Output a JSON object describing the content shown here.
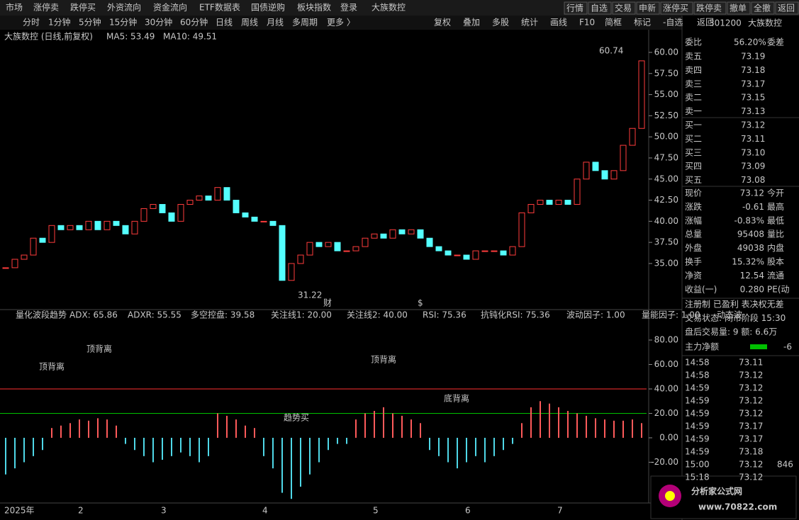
{
  "menu": [
    "市场",
    "涨停卖",
    "跌停买",
    "外资流向",
    "资金流向",
    "ETF数据表",
    "国债逆购",
    "板块指数"
  ],
  "login": "登录",
  "stock_tab": "大族数控",
  "right_buttons": [
    "行情",
    "自选",
    "交易",
    "申新",
    "涨停买",
    "跌停卖",
    "撤单",
    "全撤",
    "返回"
  ],
  "periods": [
    "分时",
    "1分钟",
    "5分钟",
    "15分钟",
    "30分钟",
    "60分钟",
    "日线",
    "周线",
    "月线",
    "多周期",
    "更多 〉"
  ],
  "tools": [
    "复权",
    "叠加",
    "多股",
    "统计",
    "画线",
    "F10",
    "简框",
    "标记",
    "-自选",
    "返回"
  ],
  "chart_data": [
    {
      "type": "candlestick",
      "title": "大族数控 (日线,前复权)",
      "legend": [
        "MA5: 53.49",
        "MA10: 49.51"
      ],
      "annotations": [
        "60.74",
        "31.22",
        "财",
        "$"
      ],
      "categories": [
        "2025年",
        null,
        null,
        null,
        null,
        null,
        null,
        null,
        "2",
        null,
        null,
        null,
        null,
        null,
        null,
        null,
        null,
        "3",
        null,
        null,
        null,
        null,
        null,
        null,
        null,
        null,
        null,
        null,
        "4",
        null,
        null,
        null,
        null,
        null,
        null,
        null,
        null,
        null,
        null,
        null,
        "5",
        null,
        null,
        null,
        null,
        null,
        null,
        null,
        null,
        null,
        "6",
        null,
        null,
        null,
        null,
        null,
        null,
        null,
        null,
        null,
        "7",
        null,
        null,
        null,
        null,
        null,
        null,
        null,
        null,
        null
      ],
      "values": [
        34.5,
        35.5,
        36,
        38,
        37.5,
        39.5,
        39,
        39.5,
        39,
        40,
        39,
        40,
        39.5,
        38.5,
        40,
        41.5,
        42,
        41,
        40,
        42,
        42.5,
        43,
        42.5,
        44,
        42.5,
        41,
        40.5,
        40,
        40,
        39.5,
        33,
        35,
        36,
        37.5,
        37,
        37.5,
        36.5,
        36.5,
        37,
        38,
        38.5,
        38,
        39,
        38.5,
        39,
        38,
        37,
        36.5,
        36,
        36,
        35.5,
        36.5,
        36.5,
        36.5,
        36,
        37,
        41,
        42,
        42.5,
        42,
        42.5,
        42,
        45,
        47,
        46,
        45,
        46,
        49,
        51,
        59
      ],
      "up_color": "#ff3c3c",
      "down_color": "#54ffff",
      "ylim": [
        30.13,
        62.43
      ],
      "yticks": [
        {
          "value": 60,
          "label": "60.00"
        },
        {
          "value": 57.5,
          "label": "57.50"
        },
        {
          "value": 55,
          "label": "55.00"
        },
        {
          "value": 52.5,
          "label": "52.50"
        },
        {
          "value": 50,
          "label": "50.00"
        },
        {
          "value": 47.5,
          "label": "47.50"
        },
        {
          "value": 45,
          "label": "45.00"
        },
        {
          "value": 42.5,
          "label": "42.50"
        },
        {
          "value": 40,
          "label": "40.00"
        },
        {
          "value": 37.5,
          "label": "37.50"
        },
        {
          "value": 35,
          "label": "35.00"
        }
      ]
    },
    {
      "type": "bar",
      "title": "量化波段趋势",
      "legend": [
        "ADX: 65.86",
        "ADXR: 55.55",
        "多空控盘: 39.58",
        "关注线1: 20.00",
        "关注线2: 40.00",
        "RSI: 75.36",
        "抗钝化RSI: 75.36",
        "波动因子: 1.00",
        "量能因子: 1.00",
        "动态波"
      ],
      "annotations": [
        "顶背离",
        "顶背离",
        "顶背离",
        "底背离",
        "趋势买"
      ],
      "reference_lines": [
        20,
        40
      ],
      "reference_colors": [
        "#00c000",
        "#ff3030"
      ],
      "values": [
        -30,
        -25,
        -20,
        -15,
        -10,
        8,
        10,
        12,
        15,
        14,
        16,
        15,
        10,
        -5,
        -10,
        -15,
        -20,
        -18,
        -15,
        -12,
        -15,
        -20,
        -15,
        20,
        18,
        15,
        10,
        8,
        -15,
        -25,
        -45,
        -50,
        -40,
        -30,
        -20,
        -10,
        -5,
        -5,
        15,
        20,
        22,
        25,
        20,
        18,
        15,
        12,
        -10,
        -15,
        -20,
        -25,
        -20,
        -15,
        -20,
        -15,
        -10,
        -5,
        12,
        25,
        30,
        28,
        25,
        22,
        20,
        18,
        16,
        15,
        14,
        14,
        15,
        12
      ],
      "up_color": "#ff5a5a",
      "down_color": "#4fd8e8",
      "ylim": [
        -52.2,
        100.3
      ],
      "yticks": [
        {
          "value": 80,
          "label": "80.00"
        },
        {
          "value": 60,
          "label": "60.00"
        },
        {
          "value": 40,
          "label": "40.00"
        },
        {
          "value": 20,
          "label": "20.00"
        },
        {
          "value": 0,
          "label": "0.00"
        },
        {
          "value": -20,
          "label": "-20.00"
        }
      ]
    }
  ],
  "quote": {
    "code": "301200",
    "name": "大族数控",
    "ratio": [
      "委比",
      "56.20%",
      "委差"
    ],
    "sell": [
      [
        "卖五",
        "73.19"
      ],
      [
        "卖四",
        "73.18"
      ],
      [
        "卖三",
        "73.17"
      ],
      [
        "卖二",
        "73.15"
      ],
      [
        "卖一",
        "73.13"
      ]
    ],
    "buy": [
      [
        "买一",
        "73.12"
      ],
      [
        "买二",
        "73.11"
      ],
      [
        "买三",
        "73.10"
      ],
      [
        "买四",
        "73.09"
      ],
      [
        "买五",
        "73.08"
      ]
    ],
    "stats": [
      [
        "现价",
        "73.12",
        "今开"
      ],
      [
        "涨跌",
        "-0.61",
        "最高"
      ],
      [
        "涨幅",
        "-0.83%",
        "最低"
      ],
      [
        "总量",
        "95408",
        "量比"
      ],
      [
        "外盘",
        "49038",
        "内盘"
      ],
      [
        "换手",
        "15.32%",
        "股本"
      ],
      [
        "净资",
        "12.54",
        "流通"
      ],
      [
        "收益(一)",
        "0.280",
        "PE(动"
      ]
    ],
    "notes": [
      "注册制 已盈利 表决权无差",
      "交易状态: 闭市阶段 15:30",
      "盘后交易量: 9 额: 6.6万"
    ],
    "flow": [
      "主力净额",
      "-6"
    ],
    "trades": [
      [
        "14:58",
        "73.11"
      ],
      [
        "14:58",
        "73.12"
      ],
      [
        "14:59",
        "73.12"
      ],
      [
        "14:59",
        "73.12"
      ],
      [
        "14:59",
        "73.12"
      ],
      [
        "14:59",
        "73.17"
      ],
      [
        "14:59",
        "73.17"
      ],
      [
        "14:59",
        "73.18"
      ],
      [
        "15:00",
        "73.12",
        "846"
      ],
      [
        "15:18",
        "73.12"
      ]
    ]
  },
  "x_tag": "分析家公式网",
  "url": "www.70822.com"
}
